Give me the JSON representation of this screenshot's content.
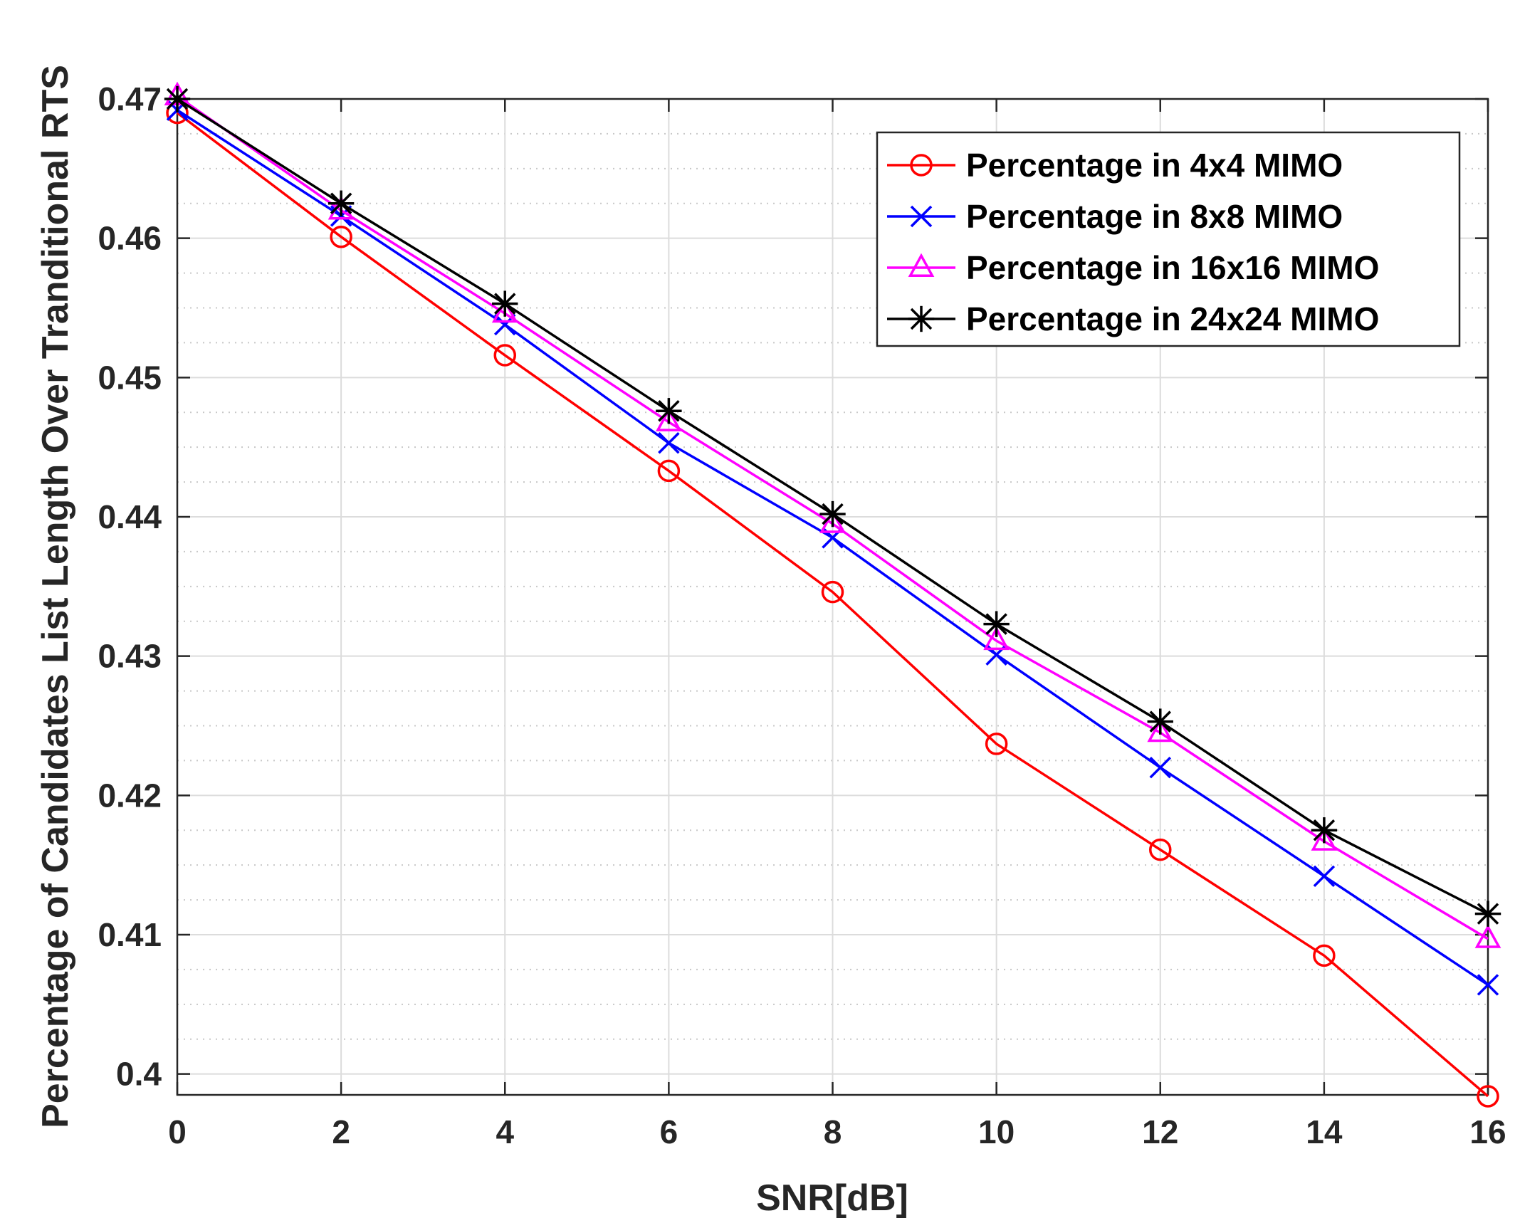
{
  "chart_data": {
    "type": "line",
    "title": "",
    "xlabel": "SNR[dB]",
    "ylabel": "Percentage of Candidates List Length Over Tranditional RTS",
    "xlim": [
      0,
      16
    ],
    "ylim": [
      0.3985,
      0.47
    ],
    "xticks": [
      "0",
      "2",
      "4",
      "6",
      "8",
      "10",
      "12",
      "14",
      "16"
    ],
    "yticks": [
      "0.4",
      "0.41",
      "0.42",
      "0.43",
      "0.44",
      "0.45",
      "0.46",
      "0.47"
    ],
    "grid": true,
    "minor_grid": true,
    "legend_position": "top-right",
    "x": [
      0,
      2,
      4,
      6,
      8,
      10,
      12,
      14,
      16
    ],
    "series": [
      {
        "name": "Percentage in 4x4 MIMO",
        "color": "#ff0000",
        "marker": "circle",
        "values": [
          0.469,
          0.4601,
          0.4516,
          0.4433,
          0.4346,
          0.4237,
          0.4161,
          0.4085,
          0.3984
        ]
      },
      {
        "name": "Percentage in 8x8 MIMO",
        "color": "#0000ff",
        "marker": "x",
        "values": [
          0.4692,
          0.4616,
          0.4538,
          0.4453,
          0.4385,
          0.4301,
          0.422,
          0.4142,
          0.4064
        ]
      },
      {
        "name": "Percentage in 16x16 MIMO",
        "color": "#ff00ff",
        "marker": "triangle",
        "values": [
          0.4702,
          0.462,
          0.4546,
          0.4468,
          0.4395,
          0.4311,
          0.4245,
          0.4167,
          0.4097
        ]
      },
      {
        "name": "Percentage in 24x24 MIMO",
        "color": "#000000",
        "marker": "star",
        "values": [
          0.47,
          0.4625,
          0.4553,
          0.4476,
          0.4402,
          0.4323,
          0.4253,
          0.4175,
          0.4115
        ]
      }
    ]
  }
}
